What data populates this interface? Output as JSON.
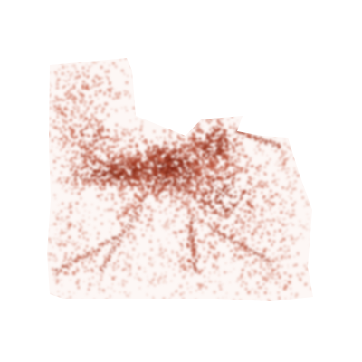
{
  "map": {
    "style": "density heatmap",
    "colors": {
      "background": "#ffffff",
      "low": "#f3d6cc",
      "mid": "#c2553a",
      "high": "#7e1f0c"
    }
  }
}
